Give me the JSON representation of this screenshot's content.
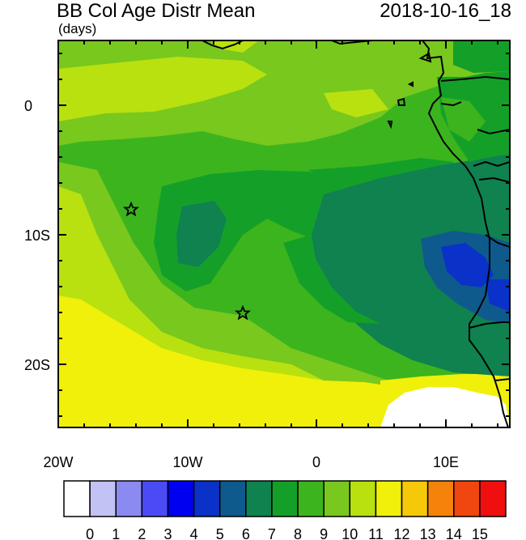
{
  "header": {
    "title": "BB Col Age Distr Mean",
    "datetime": "2018-10-16_18",
    "units": "(days)"
  },
  "axes": {
    "lon_labels": [
      "20W",
      "10W",
      "0",
      "10E"
    ],
    "lat_labels": [
      "0",
      "10S",
      "20S"
    ]
  },
  "colorbar": {
    "labels": [
      "0",
      "1",
      "2",
      "3",
      "4",
      "5",
      "6",
      "7",
      "8",
      "9",
      "10",
      "11",
      "12",
      "13",
      "14",
      "15"
    ],
    "colors": [
      "#ffffff",
      "#c2c2f5",
      "#8a8af0",
      "#4b4bf5",
      "#0000f0",
      "#0a32c8",
      "#0f5a8c",
      "#0f8250",
      "#14a028",
      "#3cb41e",
      "#78c81e",
      "#b9e10f",
      "#f0f00a",
      "#f5c80a",
      "#f5820a",
      "#f0460f",
      "#f00f0f"
    ]
  },
  "markers": {
    "site_a_icon": "star-icon",
    "site_b_icon": "star-icon"
  }
}
